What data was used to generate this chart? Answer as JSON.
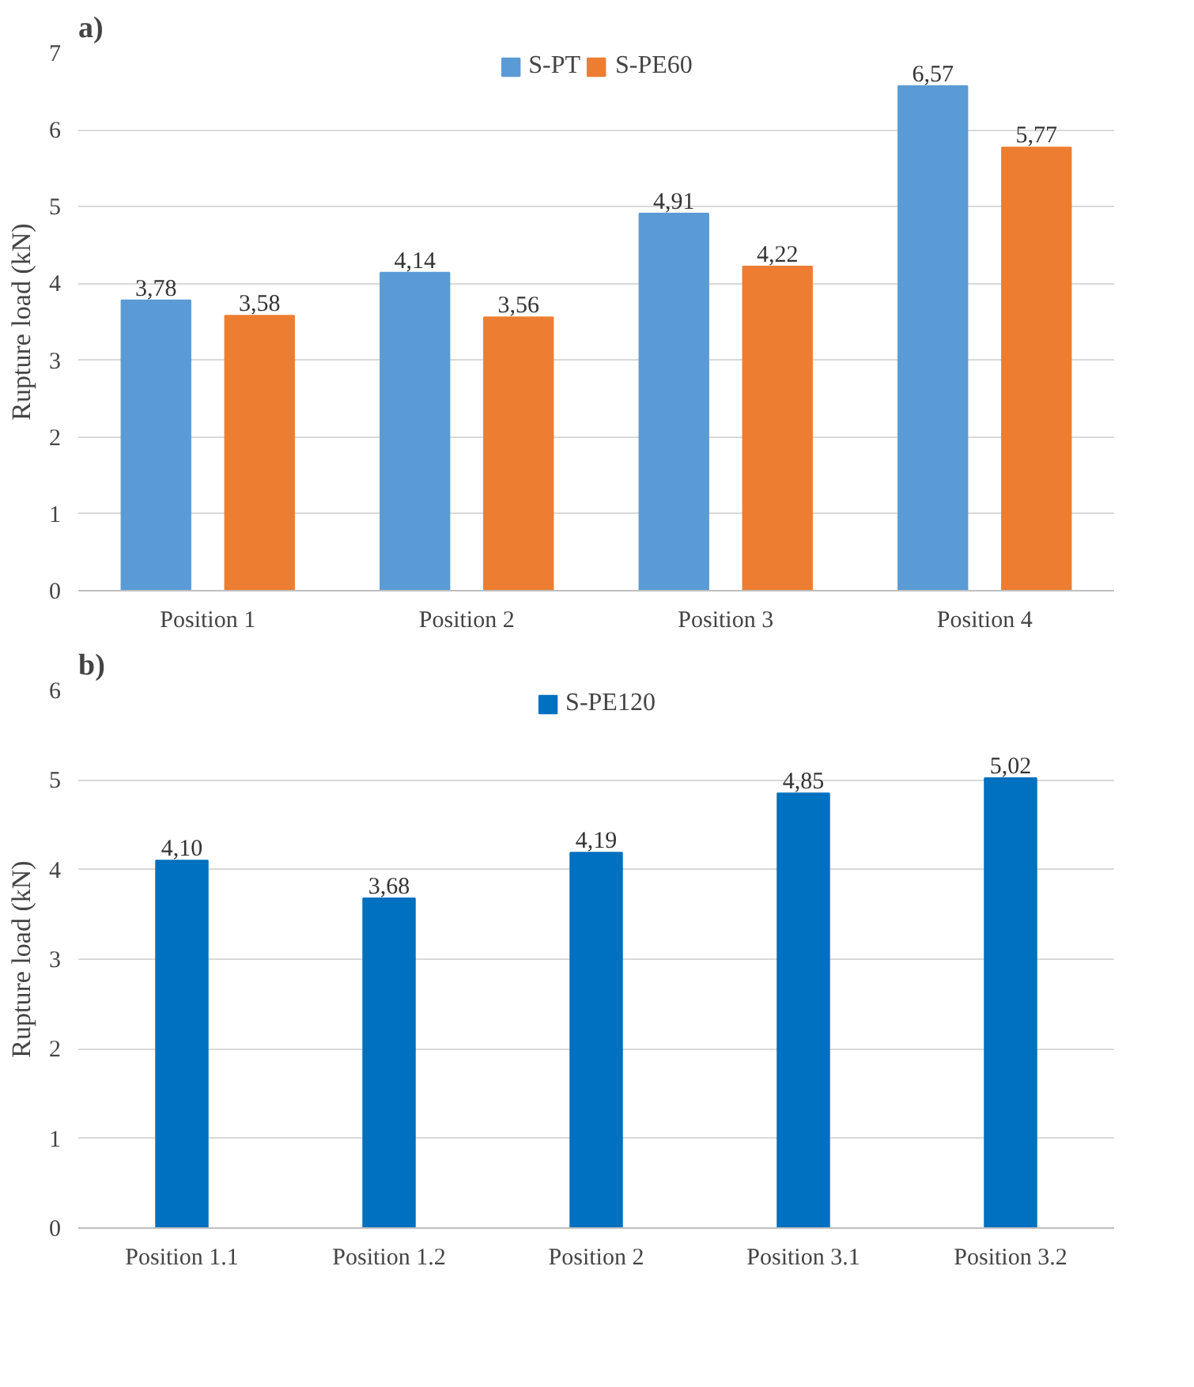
{
  "chart_data": [
    {
      "type": "bar",
      "title": "a)",
      "ylabel": "Rupture load (kN)",
      "categories": [
        "Position 1",
        "Position 2",
        "Position 3",
        "Position 4"
      ],
      "ylim": [
        0,
        7
      ],
      "yticks": [
        0,
        1,
        2,
        3,
        4,
        5,
        6,
        7
      ],
      "grid": "y",
      "legend": "top",
      "series": [
        {
          "name": "S-PT",
          "color": "#5b9bd5",
          "values": [
            3.78,
            4.14,
            4.91,
            6.57
          ],
          "value_labels": [
            "3,78",
            "4,14",
            "4,91",
            "6,57"
          ]
        },
        {
          "name": "S-PE60",
          "color": "#ed7d31",
          "values": [
            3.58,
            3.56,
            4.22,
            5.77
          ],
          "value_labels": [
            "3,58",
            "3,56",
            "4,22",
            "5,77"
          ]
        }
      ]
    },
    {
      "type": "bar",
      "title": "b)",
      "ylabel": "Rupture load (kN)",
      "categories": [
        "Position 1.1",
        "Position 1.2",
        "Position 2",
        "Position 3.1",
        "Position 3.2"
      ],
      "ylim": [
        0,
        6
      ],
      "yticks": [
        0,
        1,
        2,
        3,
        4,
        5,
        6
      ],
      "grid": "y",
      "legend": "top",
      "series": [
        {
          "name": "S-PE120",
          "color": "#0070c0",
          "values": [
            4.1,
            3.68,
            4.19,
            4.85,
            5.02
          ],
          "value_labels": [
            "4,10",
            "3,68",
            "4,19",
            "4,85",
            "5,02"
          ]
        }
      ]
    }
  ]
}
